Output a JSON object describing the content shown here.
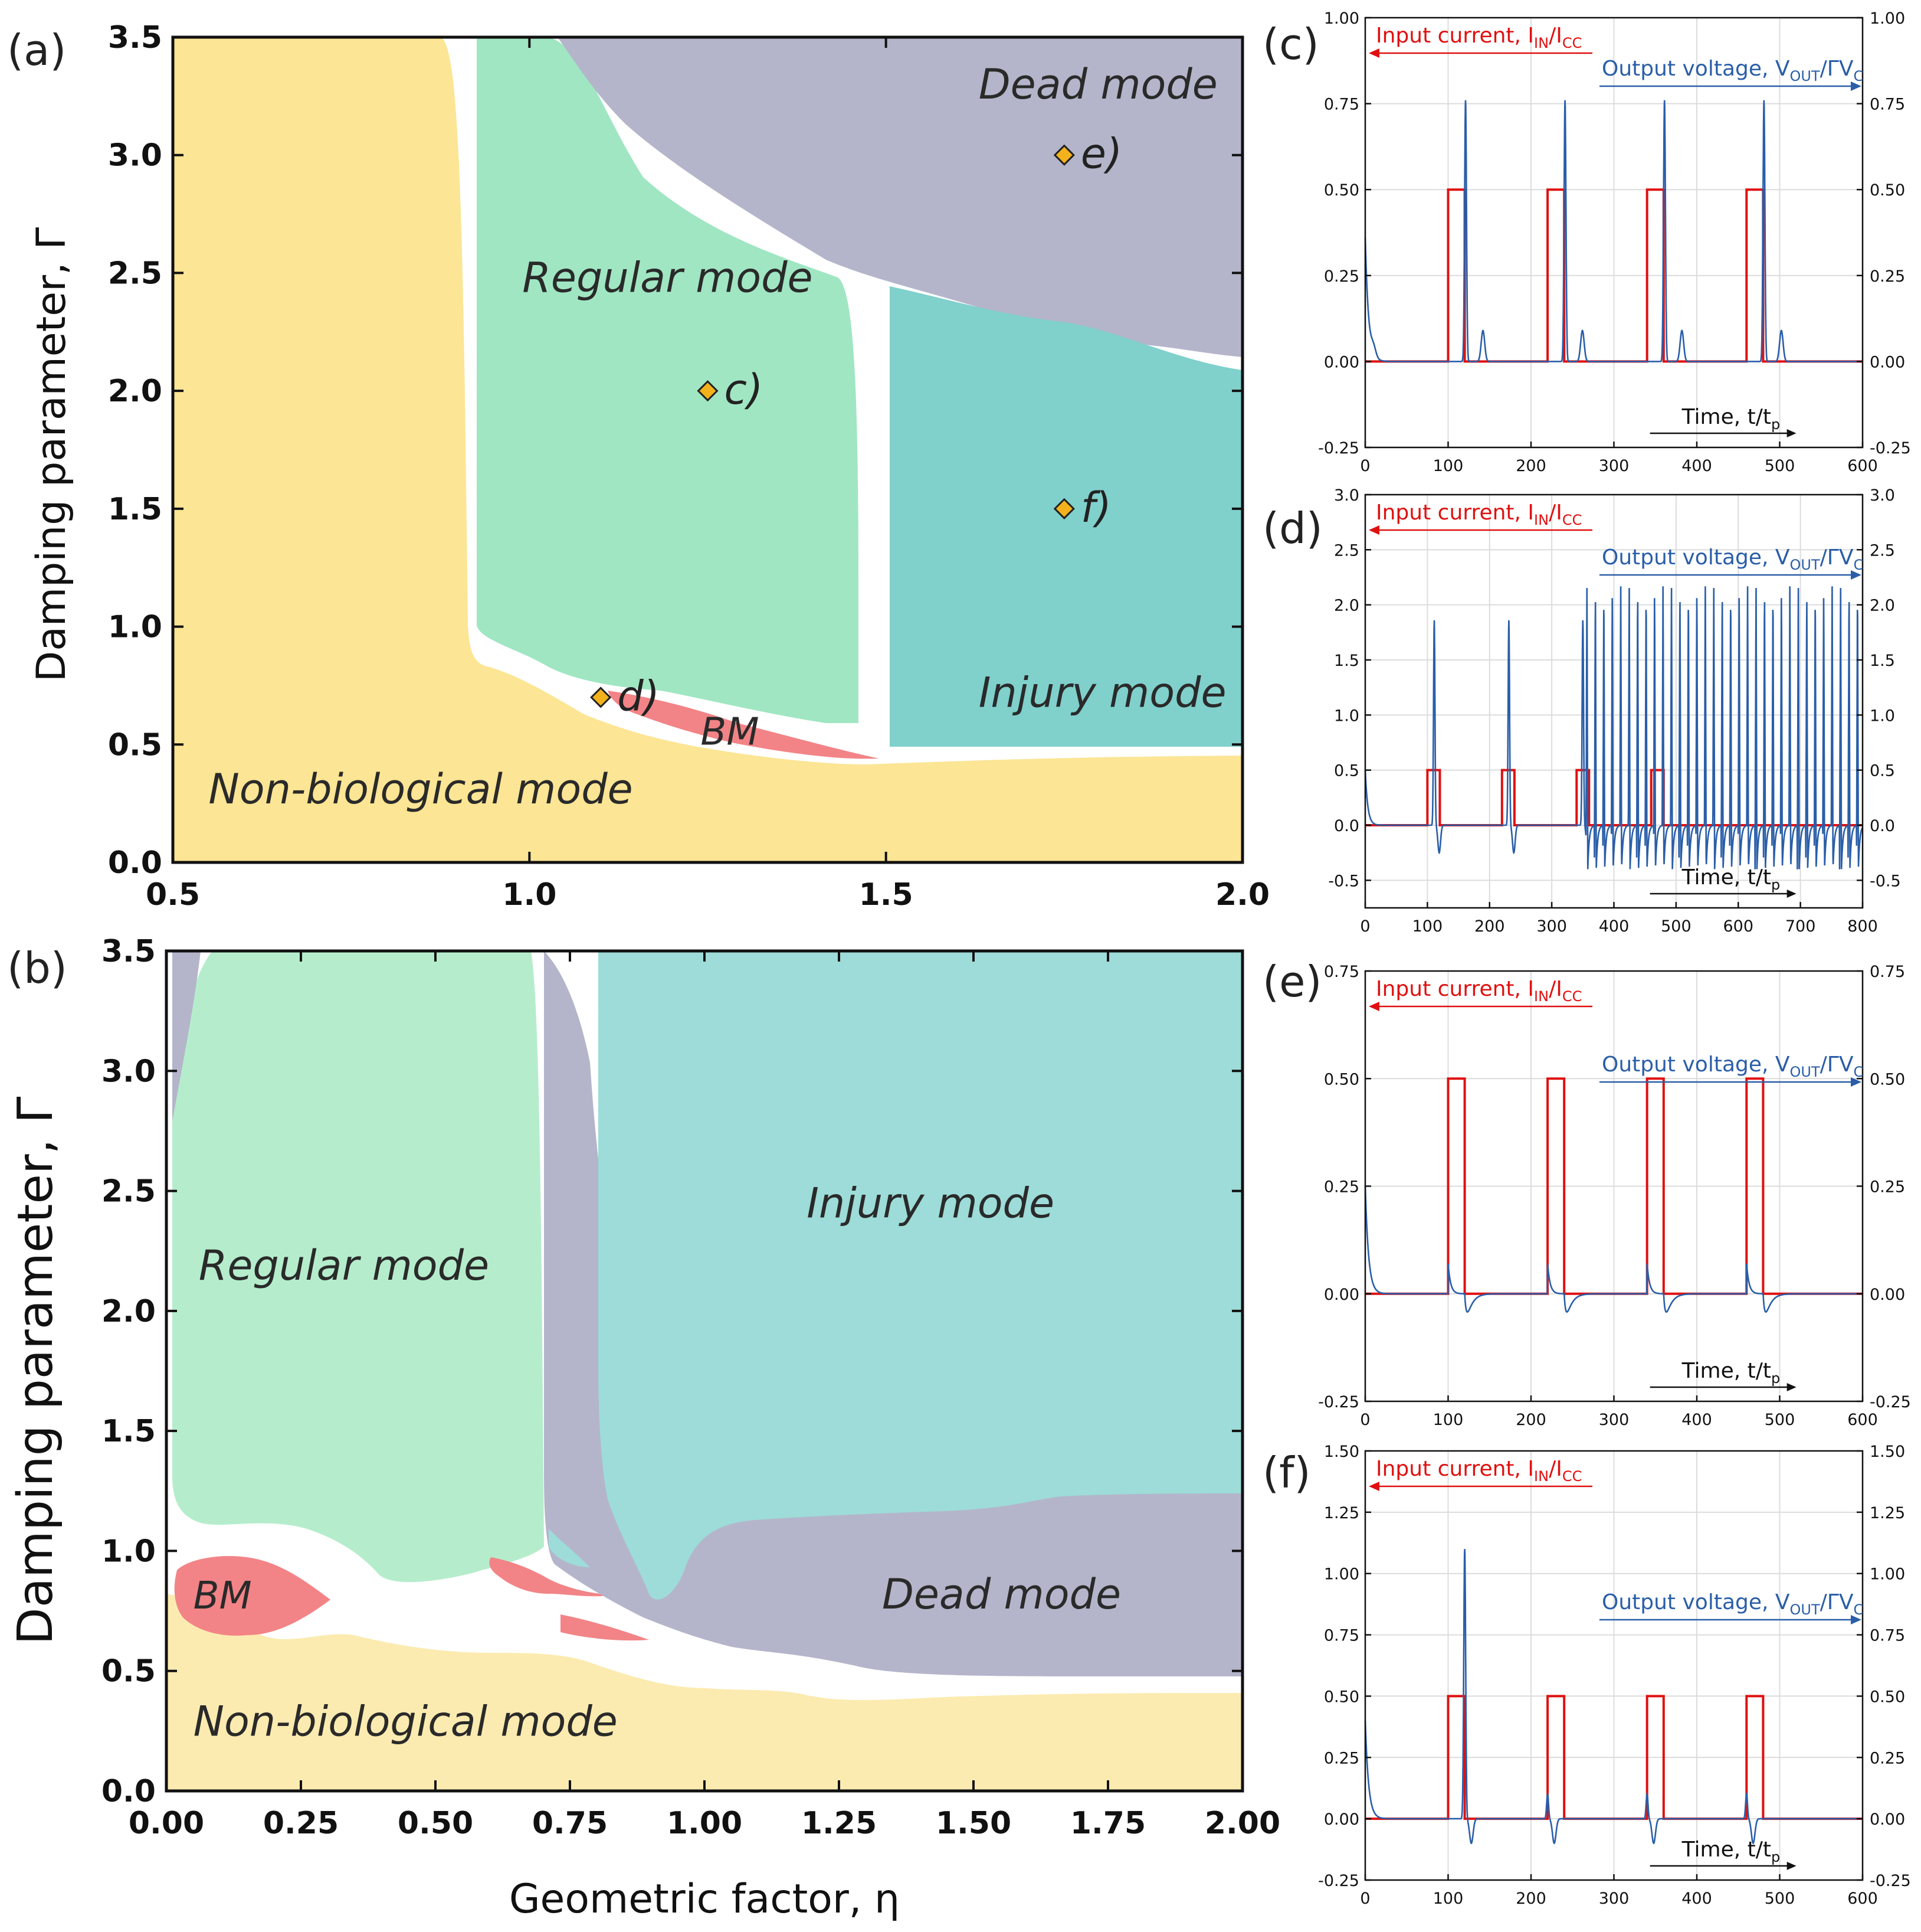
{
  "chart_data": [
    {
      "id": "a",
      "panel_label": "(a)",
      "type": "area",
      "ylabel": "Damping parameter, Γ",
      "xlabel": "",
      "xlim": [
        0.5,
        2.0
      ],
      "ylim": [
        0.0,
        3.5
      ],
      "x_ticks": [
        "0.5",
        "1.0",
        "1.5",
        "2.0"
      ],
      "y_ticks": [
        "0.0",
        "0.5",
        "1.0",
        "1.5",
        "2.0",
        "2.5",
        "3.0",
        "3.5"
      ],
      "regions": [
        {
          "key": "nonbio",
          "label": "Non-biological mode",
          "color": "#fce594",
          "label_at": [
            0.55,
            0.25
          ]
        },
        {
          "key": "regular",
          "label": "Regular mode",
          "color": "#a0e6c3",
          "label_at": [
            0.99,
            2.42
          ]
        },
        {
          "key": "dead",
          "label": "Dead mode",
          "color": "#b4b5ca",
          "label_at": [
            1.63,
            3.24
          ]
        },
        {
          "key": "injury",
          "label": "Injury mode",
          "color": "#80d0cc",
          "label_at": [
            1.63,
            0.66
          ]
        },
        {
          "key": "bm",
          "label": "BM",
          "color": "#f28487",
          "label_at": [
            1.24,
            0.5
          ]
        }
      ],
      "points": [
        {
          "label": "c)",
          "x": 1.25,
          "y": 2.0
        },
        {
          "label": "d)",
          "x": 1.1,
          "y": 0.7
        },
        {
          "label": "e)",
          "x": 1.75,
          "y": 3.0
        },
        {
          "label": "f)",
          "x": 1.75,
          "y": 1.5
        }
      ],
      "point_color": "#f3b21b"
    },
    {
      "id": "b",
      "panel_label": "(b)",
      "type": "area",
      "ylabel": "Damping parameter, Γ",
      "xlabel": "Geometric factor, η",
      "xlim": [
        0.0,
        2.0
      ],
      "ylim": [
        0.0,
        3.5
      ],
      "x_ticks": [
        "0.00",
        "0.25",
        "0.50",
        "0.75",
        "1.00",
        "1.25",
        "1.50",
        "1.75",
        "2.00"
      ],
      "y_ticks": [
        "0.0",
        "0.5",
        "1.0",
        "1.5",
        "2.0",
        "2.5",
        "3.0",
        "3.5"
      ],
      "regions": [
        {
          "key": "nonbio",
          "label": "Non-biological mode",
          "color": "#fcebb0",
          "label_at": [
            0.05,
            0.23
          ]
        },
        {
          "key": "regular",
          "label": "Regular mode",
          "color": "#b5edcc",
          "label_at": [
            0.06,
            2.13
          ]
        },
        {
          "key": "injury",
          "label": "Injury mode",
          "color": "#9ddcd8",
          "label_at": [
            1.19,
            2.39
          ]
        },
        {
          "key": "dead",
          "label": "Dead mode",
          "color": "#b4b5ca",
          "label_at": [
            1.33,
            0.76
          ]
        },
        {
          "key": "bm",
          "label": "BM",
          "color": "#f28487",
          "label_at": [
            0.05,
            0.76
          ]
        }
      ]
    },
    {
      "id": "c",
      "panel_label": "(c)",
      "type": "line",
      "xlabel": "Time, t/t",
      "xlabel_sub": "p",
      "xlim": [
        0,
        600
      ],
      "ylim": [
        -0.25,
        1.0
      ],
      "x_ticks": [
        0,
        100,
        200,
        300,
        400,
        500,
        600
      ],
      "y_ticks": [
        "-0.25",
        "0.00",
        "0.25",
        "0.50",
        "0.75",
        "1.00"
      ],
      "series": [
        {
          "name": "Input current",
          "label": "Input current, I",
          "sub1": "IN",
          "mid": "/I",
          "sub2": "CC",
          "color": "#e01010",
          "pulse_width": 20,
          "pulse_starts": [
            100,
            220,
            340,
            460
          ],
          "pulse_amps": [
            0.5,
            0.5,
            0.5,
            0.5
          ]
        },
        {
          "name": "Output voltage",
          "label": "Output voltage, V",
          "sub1": "OUT",
          "mid": "/ΓV",
          "sub2": "C",
          "color": "#2a5ea8",
          "initial_peak": 0.36,
          "spike_times": [
            121,
            241,
            361,
            481
          ],
          "spike_heights": [
            0.76,
            0.76,
            0.76,
            0.76
          ],
          "after_bump": 0.09,
          "start_bump": 0.025,
          "undershoot": 0
        }
      ]
    },
    {
      "id": "d",
      "panel_label": "(d)",
      "type": "line",
      "xlabel": "Time, t/t",
      "xlabel_sub": "p",
      "xlim": [
        0,
        800
      ],
      "ylim": [
        -0.75,
        3.0
      ],
      "x_ticks": [
        0,
        100,
        200,
        300,
        400,
        500,
        600,
        700,
        800
      ],
      "y_ticks": [
        "-0.5",
        "0.0",
        "0.5",
        "1.0",
        "1.5",
        "2.0",
        "2.5",
        "3.0"
      ],
      "series": [
        {
          "name": "Input current",
          "label": "Input current, I",
          "sub1": "IN",
          "mid": "/I",
          "sub2": "CC",
          "color": "#e01010",
          "pulse_width": 20,
          "pulse_starts": [
            100,
            220,
            340,
            460
          ],
          "pulse_amps": [
            0.5,
            0.5,
            0.5,
            0.5
          ]
        },
        {
          "name": "Output voltage",
          "label": "Output voltage, V",
          "sub1": "OUT",
          "mid": "/ΓV",
          "sub2": "C",
          "color": "#2a5ea8",
          "initial_peak": 0.5,
          "spike_times": [
            111,
            231,
            350
          ],
          "spike_heights": [
            1.86,
            1.86,
            1.86
          ],
          "undershoot": -0.25,
          "oscillation": {
            "start": 355,
            "end": 800,
            "period": 13.6,
            "max": 2.22,
            "min": -0.4
          }
        }
      ]
    },
    {
      "id": "e",
      "panel_label": "(e)",
      "type": "line",
      "xlabel": "Time, t/t",
      "xlabel_sub": "p",
      "xlim": [
        0,
        600
      ],
      "ylim": [
        -0.25,
        0.75
      ],
      "x_ticks": [
        0,
        100,
        200,
        300,
        400,
        500,
        600
      ],
      "y_ticks": [
        "-0.25",
        "0.00",
        "0.25",
        "0.50",
        "0.75"
      ],
      "series": [
        {
          "name": "Input current",
          "label": "Input current, I",
          "sub1": "IN",
          "mid": "/I",
          "sub2": "CC",
          "color": "#e01010",
          "pulse_width": 20,
          "pulse_starts": [
            100,
            220,
            340,
            460
          ],
          "pulse_amps": [
            0.5,
            0.5,
            0.5,
            0.5
          ]
        },
        {
          "name": "Output voltage",
          "label": "Output voltage, V",
          "sub1": "OUT",
          "mid": "/ΓV",
          "sub2": "C",
          "color": "#2a5ea8",
          "initial_peak": 0.25,
          "spike_times": [
            100,
            220,
            340,
            460
          ],
          "spike_heights": [
            0.07,
            0.07,
            0.07,
            0.07
          ],
          "undershoot": -0.05,
          "decay_mode": true
        }
      ]
    },
    {
      "id": "f",
      "panel_label": "(f)",
      "type": "line",
      "xlabel": "Time, t/t",
      "xlabel_sub": "p",
      "xlim": [
        0,
        600
      ],
      "ylim": [
        -0.25,
        1.5
      ],
      "x_ticks": [
        0,
        100,
        200,
        300,
        400,
        500,
        600
      ],
      "y_ticks": [
        "-0.25",
        "0.00",
        "0.25",
        "0.50",
        "0.75",
        "1.00",
        "1.25",
        "1.50"
      ],
      "series": [
        {
          "name": "Input current",
          "label": "Input current, I",
          "sub1": "IN",
          "mid": "/I",
          "sub2": "CC",
          "color": "#e01010",
          "pulse_width": 20,
          "pulse_starts": [
            100,
            220,
            340,
            460
          ],
          "pulse_amps": [
            0.5,
            0.5,
            0.5,
            0.5
          ]
        },
        {
          "name": "Output voltage",
          "label": "Output voltage, V",
          "sub1": "OUT",
          "mid": "/ΓV",
          "sub2": "C",
          "color": "#2a5ea8",
          "initial_peak": 0.4,
          "spike_times": [
            120,
            220,
            340,
            460
          ],
          "spike_heights": [
            1.1,
            0.1,
            0.1,
            0.1
          ],
          "undershoot": -0.1,
          "fire_first_only": true
        }
      ]
    }
  ]
}
